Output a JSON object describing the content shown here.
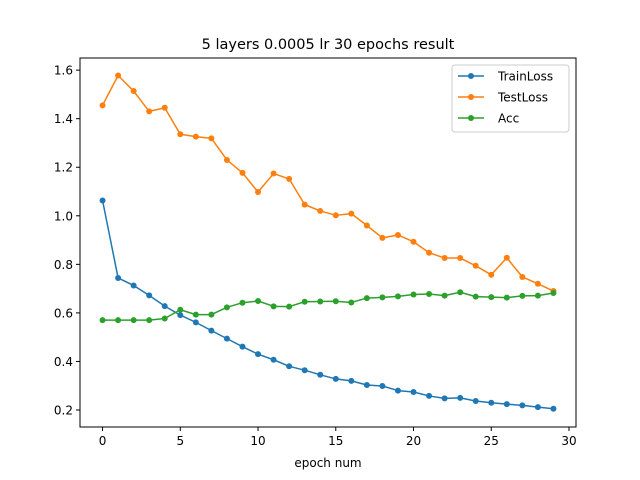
{
  "chart_data": {
    "type": "line",
    "title": "5 layers 0.0005 lr 30 epochs result",
    "xlabel": "epoch num",
    "ylabel": "",
    "xlim": [
      -1.45,
      30.45
    ],
    "ylim": [
      0.13,
      1.65
    ],
    "xticks": [
      0,
      5,
      10,
      15,
      20,
      25,
      30
    ],
    "yticks": [
      0.2,
      0.4,
      0.6,
      0.8,
      1.0,
      1.2,
      1.4,
      1.6
    ],
    "ytick_labels": [
      "0.2",
      "0.4",
      "0.6",
      "0.8",
      "1.0",
      "1.2",
      "1.4",
      "1.6"
    ],
    "grid": false,
    "legend_position": "top-right",
    "x": [
      0,
      1,
      2,
      3,
      4,
      5,
      6,
      7,
      8,
      9,
      10,
      11,
      12,
      13,
      14,
      15,
      16,
      17,
      18,
      19,
      20,
      21,
      22,
      23,
      24,
      25,
      26,
      27,
      28,
      29
    ],
    "series": [
      {
        "name": "TrainLoss",
        "color": "#1f77b4",
        "values": [
          1.063,
          0.744,
          0.713,
          0.672,
          0.628,
          0.591,
          0.561,
          0.527,
          0.494,
          0.461,
          0.43,
          0.407,
          0.38,
          0.364,
          0.345,
          0.328,
          0.32,
          0.303,
          0.299,
          0.28,
          0.274,
          0.258,
          0.248,
          0.25,
          0.237,
          0.23,
          0.224,
          0.219,
          0.212,
          0.205
        ]
      },
      {
        "name": "TestLoss",
        "color": "#ff7f0e",
        "values": [
          1.455,
          1.578,
          1.514,
          1.43,
          1.445,
          1.336,
          1.326,
          1.319,
          1.23,
          1.177,
          1.098,
          1.174,
          1.152,
          1.046,
          1.02,
          1.002,
          1.009,
          0.96,
          0.909,
          0.921,
          0.893,
          0.848,
          0.826,
          0.826,
          0.794,
          0.757,
          0.827,
          0.748,
          0.72,
          0.69
        ]
      },
      {
        "name": "Acc",
        "color": "#2ca02c",
        "values": [
          0.57,
          0.57,
          0.57,
          0.57,
          0.577,
          0.613,
          0.593,
          0.593,
          0.623,
          0.642,
          0.649,
          0.627,
          0.626,
          0.646,
          0.647,
          0.648,
          0.643,
          0.661,
          0.664,
          0.668,
          0.676,
          0.678,
          0.671,
          0.685,
          0.667,
          0.665,
          0.663,
          0.67,
          0.671,
          0.682
        ]
      }
    ]
  }
}
